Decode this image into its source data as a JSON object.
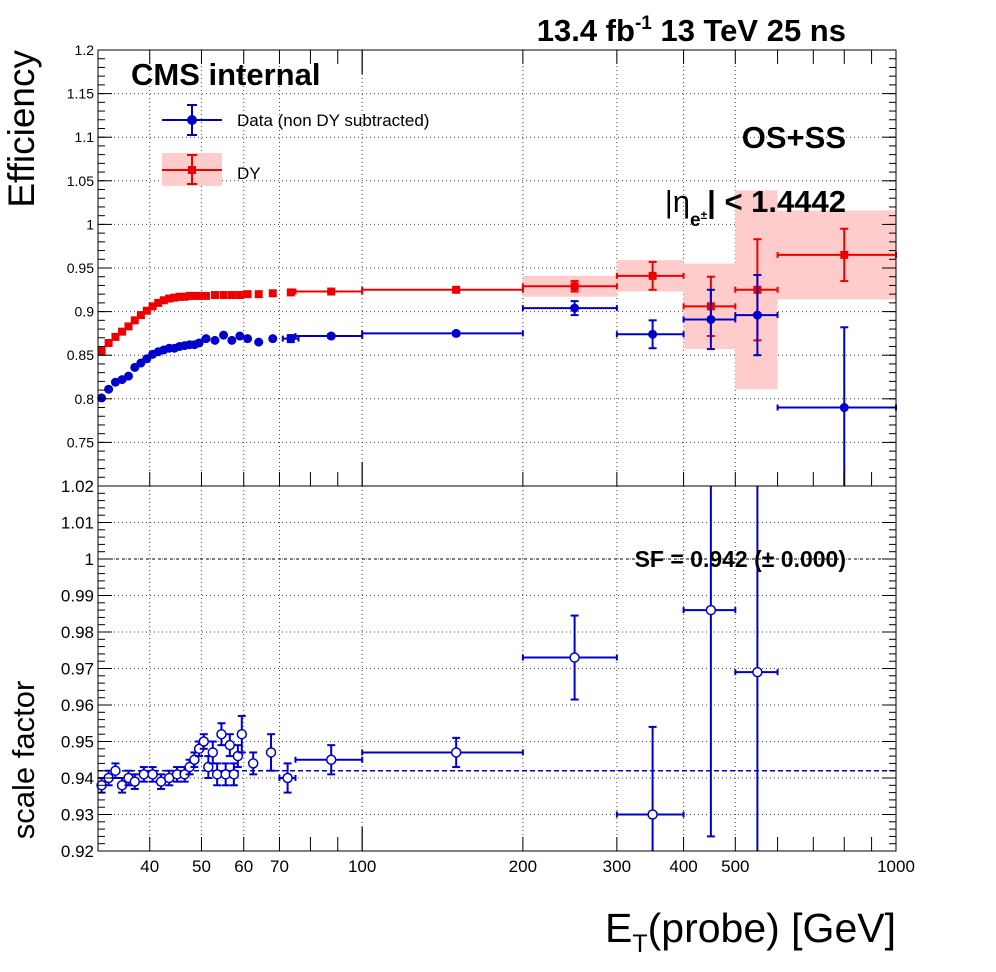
{
  "header": {
    "lumi_value": "13.4 fb",
    "lumi_exponent": "-1",
    "energy": " 13 TeV 25 ns"
  },
  "labels": {
    "experiment": "CMS internal",
    "charge_selection": "OS+SS",
    "eta_bar_left": "|",
    "eta_symbol": "η",
    "eta_subscript": "e",
    "eta_subscript_sup": "±",
    "eta_cut": "| < 1.4442",
    "sf_summary": "SF = 0.942 (± 0.000)",
    "x_axis_main": "E",
    "x_axis_sub": "T",
    "x_axis_rest": "(probe) [GeV]"
  },
  "colors": {
    "data_series": "#0000cc",
    "dy_series": "#ee0000",
    "dy_band": "#ffcccc",
    "grid": "#444444",
    "frame": "#000000"
  },
  "chart_data": [
    {
      "type": "scatter",
      "name": "efficiency",
      "ylabel": "Efficiency",
      "x_scale": "log",
      "xlim": [
        32,
        1000
      ],
      "ylim": [
        0.7,
        1.2
      ],
      "grid": true,
      "y_ticks": [
        0.75,
        0.8,
        0.85,
        0.9,
        0.95,
        1,
        1.05,
        1.1,
        1.15,
        1.2
      ],
      "y_tick_labels": [
        "0.75",
        "0.8",
        "0.85",
        "0.9",
        "0.95",
        "1",
        "1.05",
        "1.1",
        "1.15",
        "1.2"
      ],
      "legend_position": "top-left",
      "series": [
        {
          "name": "Data (non DY subtracted)",
          "marker": "circle",
          "points": [
            {
              "x": 32.5,
              "y": 0.801
            },
            {
              "x": 33.5,
              "y": 0.811
            },
            {
              "x": 34.5,
              "y": 0.819
            },
            {
              "x": 35.5,
              "y": 0.822
            },
            {
              "x": 36.5,
              "y": 0.826
            },
            {
              "x": 37.5,
              "y": 0.836
            },
            {
              "x": 38.5,
              "y": 0.841
            },
            {
              "x": 39.5,
              "y": 0.846
            },
            {
              "x": 40.5,
              "y": 0.851
            },
            {
              "x": 41.5,
              "y": 0.854
            },
            {
              "x": 42.5,
              "y": 0.856
            },
            {
              "x": 43.5,
              "y": 0.858
            },
            {
              "x": 44.5,
              "y": 0.858
            },
            {
              "x": 45.5,
              "y": 0.86
            },
            {
              "x": 46.5,
              "y": 0.861
            },
            {
              "x": 47.5,
              "y": 0.862
            },
            {
              "x": 48.5,
              "y": 0.862
            },
            {
              "x": 49.5,
              "y": 0.864
            },
            {
              "x": 51,
              "y": 0.869
            },
            {
              "x": 53,
              "y": 0.867
            },
            {
              "x": 55,
              "y": 0.873
            },
            {
              "x": 57,
              "y": 0.867
            },
            {
              "x": 59,
              "y": 0.872
            },
            {
              "x": 61,
              "y": 0.869
            },
            {
              "x": 64,
              "y": 0.865
            },
            {
              "x": 68,
              "y": 0.869
            },
            {
              "x": 73.5,
              "y": 0.869,
              "xlo": 71,
              "xhi": 76,
              "err": 0.004
            },
            {
              "x": 87.5,
              "y": 0.872,
              "xlo": 75,
              "xhi": 100,
              "err": 0.002
            },
            {
              "x": 150,
              "y": 0.875,
              "xlo": 100,
              "xhi": 200,
              "err": 0.002
            },
            {
              "x": 250,
              "y": 0.904,
              "xlo": 200,
              "xhi": 300,
              "err": 0.008
            },
            {
              "x": 350,
              "y": 0.874,
              "xlo": 300,
              "xhi": 400,
              "err": 0.016
            },
            {
              "x": 450,
              "y": 0.891,
              "xlo": 400,
              "xhi": 500,
              "err": 0.034
            },
            {
              "x": 550,
              "y": 0.896,
              "xlo": 500,
              "xhi": 600,
              "err": 0.046
            },
            {
              "x": 800,
              "y": 0.79,
              "xlo": 600,
              "xhi": 1000,
              "err": 0.092
            }
          ]
        },
        {
          "name": "DY",
          "marker": "square",
          "points": [
            {
              "x": 32.5,
              "y": 0.855
            },
            {
              "x": 33.5,
              "y": 0.864
            },
            {
              "x": 34.5,
              "y": 0.871
            },
            {
              "x": 35.5,
              "y": 0.877
            },
            {
              "x": 36.5,
              "y": 0.883
            },
            {
              "x": 37.5,
              "y": 0.89
            },
            {
              "x": 38.5,
              "y": 0.896
            },
            {
              "x": 39.5,
              "y": 0.901
            },
            {
              "x": 40.5,
              "y": 0.906
            },
            {
              "x": 41.5,
              "y": 0.91
            },
            {
              "x": 42.5,
              "y": 0.913
            },
            {
              "x": 43.5,
              "y": 0.915
            },
            {
              "x": 44.5,
              "y": 0.916
            },
            {
              "x": 45.5,
              "y": 0.917
            },
            {
              "x": 46.5,
              "y": 0.917
            },
            {
              "x": 47.5,
              "y": 0.918
            },
            {
              "x": 48.5,
              "y": 0.918
            },
            {
              "x": 49.5,
              "y": 0.918
            },
            {
              "x": 51,
              "y": 0.918
            },
            {
              "x": 53,
              "y": 0.919
            },
            {
              "x": 55,
              "y": 0.919
            },
            {
              "x": 57,
              "y": 0.919
            },
            {
              "x": 59,
              "y": 0.919
            },
            {
              "x": 61,
              "y": 0.92
            },
            {
              "x": 64,
              "y": 0.92
            },
            {
              "x": 68,
              "y": 0.921
            },
            {
              "x": 73.5,
              "y": 0.922
            },
            {
              "x": 87.5,
              "y": 0.923,
              "xlo": 75,
              "xhi": 100,
              "err": 0.001
            },
            {
              "x": 150,
              "y": 0.925,
              "xlo": 100,
              "xhi": 200,
              "err": 0.001
            },
            {
              "x": 250,
              "y": 0.929,
              "xlo": 200,
              "xhi": 300,
              "err": 0.006,
              "band": 0.012
            },
            {
              "x": 350,
              "y": 0.941,
              "xlo": 300,
              "xhi": 400,
              "err": 0.016,
              "band": 0.018
            },
            {
              "x": 450,
              "y": 0.906,
              "xlo": 400,
              "xhi": 500,
              "err": 0.034,
              "band": 0.049
            },
            {
              "x": 550,
              "y": 0.925,
              "xlo": 500,
              "xhi": 600,
              "err": 0.058,
              "band": 0.114
            },
            {
              "x": 800,
              "y": 0.965,
              "xlo": 600,
              "xhi": 1000,
              "err": 0.03,
              "band": 0.051
            }
          ]
        }
      ]
    },
    {
      "type": "scatter",
      "name": "scale factor",
      "ylabel": "scale factor",
      "xlabel": "E_T(probe) [GeV]",
      "x_scale": "log",
      "xlim": [
        32,
        1000
      ],
      "ylim": [
        0.92,
        1.02
      ],
      "grid": true,
      "x_ticks": [
        40,
        50,
        60,
        70,
        100,
        200,
        300,
        400,
        500,
        1000
      ],
      "x_tick_labels": [
        "40",
        "50",
        "60",
        "70",
        "100",
        "200",
        "300",
        "400",
        "500",
        "1000"
      ],
      "y_ticks": [
        0.92,
        0.93,
        0.94,
        0.95,
        0.96,
        0.97,
        0.98,
        0.99,
        1,
        1.01,
        1.02
      ],
      "y_tick_labels": [
        "0.92",
        "0.93",
        "0.94",
        "0.95",
        "0.96",
        "0.97",
        "0.98",
        "0.99",
        "1",
        "1.01",
        "1.02"
      ],
      "reference_line": 1.0,
      "fit_line": 0.942,
      "series": [
        {
          "name": "scale factor",
          "marker": "open-circle",
          "points": [
            {
              "x": 32.5,
              "y": 0.938,
              "err": 0.002
            },
            {
              "x": 33.5,
              "y": 0.94,
              "err": 0.002
            },
            {
              "x": 34.5,
              "y": 0.942,
              "err": 0.002
            },
            {
              "x": 35.5,
              "y": 0.938,
              "err": 0.002
            },
            {
              "x": 36.5,
              "y": 0.94,
              "err": 0.002
            },
            {
              "x": 37.5,
              "y": 0.939,
              "err": 0.002
            },
            {
              "x": 39,
              "y": 0.941,
              "err": 0.002
            },
            {
              "x": 40.5,
              "y": 0.941,
              "err": 0.002
            },
            {
              "x": 42,
              "y": 0.939,
              "err": 0.002
            },
            {
              "x": 43.5,
              "y": 0.94,
              "err": 0.002
            },
            {
              "x": 45,
              "y": 0.941,
              "err": 0.002
            },
            {
              "x": 46.5,
              "y": 0.941,
              "err": 0.002
            },
            {
              "x": 47.5,
              "y": 0.943,
              "err": 0.002
            },
            {
              "x": 48.5,
              "y": 0.945,
              "err": 0.002
            },
            {
              "x": 49.5,
              "y": 0.948,
              "err": 0.002
            },
            {
              "x": 50.5,
              "y": 0.95,
              "err": 0.002
            },
            {
              "x": 51.5,
              "y": 0.943,
              "err": 0.003
            },
            {
              "x": 52.5,
              "y": 0.947,
              "err": 0.003
            },
            {
              "x": 53.5,
              "y": 0.941,
              "err": 0.003
            },
            {
              "x": 54.5,
              "y": 0.952,
              "err": 0.003
            },
            {
              "x": 55.5,
              "y": 0.941,
              "err": 0.003
            },
            {
              "x": 56.5,
              "y": 0.949,
              "err": 0.003
            },
            {
              "x": 57.5,
              "y": 0.941,
              "err": 0.003
            },
            {
              "x": 58.5,
              "y": 0.946,
              "err": 0.003
            },
            {
              "x": 59.5,
              "y": 0.952,
              "err": 0.005
            },
            {
              "x": 62.5,
              "y": 0.944,
              "err": 0.003
            },
            {
              "x": 67.5,
              "y": 0.947,
              "err": 0.005
            },
            {
              "x": 72.5,
              "y": 0.94,
              "xlo": 70,
              "xhi": 75,
              "err": 0.004
            },
            {
              "x": 87.5,
              "y": 0.945,
              "xlo": 75,
              "xhi": 100,
              "err": 0.004
            },
            {
              "x": 150,
              "y": 0.947,
              "xlo": 100,
              "xhi": 200,
              "err": 0.004
            },
            {
              "x": 250,
              "y": 0.973,
              "xlo": 200,
              "xhi": 300,
              "err": 0.0115
            },
            {
              "x": 350,
              "y": 0.93,
              "xlo": 300,
              "xhi": 400,
              "err": 0.024
            },
            {
              "x": 450,
              "y": 0.986,
              "xlo": 400,
              "xhi": 500,
              "err": 0.062
            },
            {
              "x": 550,
              "y": 0.969,
              "xlo": 500,
              "xhi": 600,
              "err": 0.087
            }
          ]
        }
      ]
    }
  ]
}
